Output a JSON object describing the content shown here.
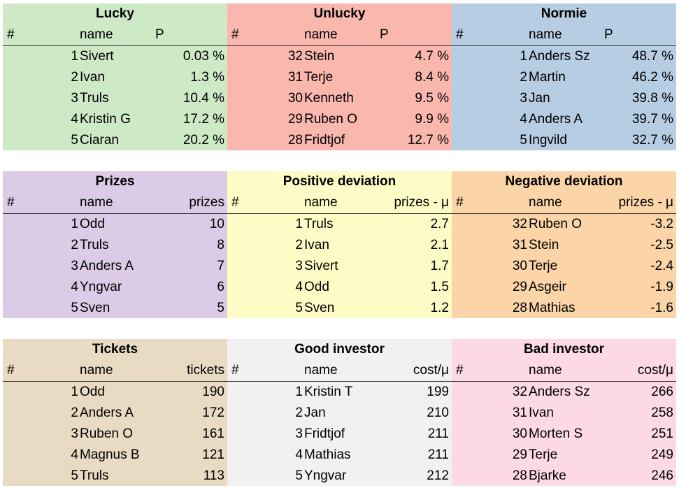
{
  "panels": [
    {
      "id": "lucky",
      "title": "Lucky",
      "color": "#cde9c6",
      "headers": {
        "hash": "#",
        "name": "name",
        "value": "P"
      },
      "value_align": "left-mid",
      "rows": [
        {
          "rank": "1",
          "name": "Sivert",
          "value": "0.03 %"
        },
        {
          "rank": "2",
          "name": "Ivan",
          "value": "1.3 %"
        },
        {
          "rank": "3",
          "name": "Truls",
          "value": "10.4 %"
        },
        {
          "rank": "4",
          "name": "Kristin G",
          "value": "17.2 %"
        },
        {
          "rank": "5",
          "name": "Ciaran",
          "value": "20.2 %"
        }
      ]
    },
    {
      "id": "unlucky",
      "title": "Unlucky",
      "color": "#f9b7ae",
      "headers": {
        "hash": "#",
        "name": "name",
        "value": "P"
      },
      "value_align": "left-mid",
      "rows": [
        {
          "rank": "32",
          "name": "Stein",
          "value": "4.7 %"
        },
        {
          "rank": "31",
          "name": "Terje",
          "value": "8.4 %"
        },
        {
          "rank": "30",
          "name": "Kenneth",
          "value": "9.5 %"
        },
        {
          "rank": "29",
          "name": "Ruben O",
          "value": "9.9 %"
        },
        {
          "rank": "28",
          "name": "Fridtjof",
          "value": "12.7 %"
        }
      ]
    },
    {
      "id": "normie",
      "title": "Normie",
      "color": "#b6cde4",
      "headers": {
        "hash": "#",
        "name": "name",
        "value": "P"
      },
      "value_align": "left-mid",
      "rows": [
        {
          "rank": "1",
          "name": "Anders Sz",
          "value": "48.7 %"
        },
        {
          "rank": "2",
          "name": "Martin",
          "value": "46.2 %"
        },
        {
          "rank": "3",
          "name": "Jan",
          "value": "39.8 %"
        },
        {
          "rank": "4",
          "name": "Anders A",
          "value": "39.7 %"
        },
        {
          "rank": "5",
          "name": "Ingvild",
          "value": "32.7 %"
        }
      ]
    },
    {
      "id": "prizes",
      "title": "Prizes",
      "color": "#dbcbe6",
      "headers": {
        "hash": "#",
        "name": "name",
        "value": "prizes"
      },
      "value_align": "right",
      "rows": [
        {
          "rank": "1",
          "name": "Odd",
          "value": "10"
        },
        {
          "rank": "2",
          "name": "Truls",
          "value": "8"
        },
        {
          "rank": "3",
          "name": "Anders A",
          "value": "7"
        },
        {
          "rank": "4",
          "name": "Yngvar",
          "value": "6"
        },
        {
          "rank": "5",
          "name": "Sven",
          "value": "5"
        }
      ]
    },
    {
      "id": "positive",
      "title": "Positive deviation",
      "color": "#fefcc6",
      "headers": {
        "hash": "#",
        "name": "name",
        "value": "prizes - μ"
      },
      "value_align": "right",
      "rows": [
        {
          "rank": "1",
          "name": "Truls",
          "value": "2.7"
        },
        {
          "rank": "2",
          "name": "Ivan",
          "value": "2.1"
        },
        {
          "rank": "3",
          "name": "Sivert",
          "value": "1.7"
        },
        {
          "rank": "4",
          "name": "Odd",
          "value": "1.5"
        },
        {
          "rank": "5",
          "name": "Sven",
          "value": "1.2"
        }
      ]
    },
    {
      "id": "negative",
      "title": "Negative deviation",
      "color": "#fbd5a8",
      "headers": {
        "hash": "#",
        "name": "name",
        "value": "prizes - μ"
      },
      "value_align": "right",
      "rows": [
        {
          "rank": "32",
          "name": "Ruben O",
          "value": "-3.2"
        },
        {
          "rank": "31",
          "name": "Stein",
          "value": "-2.5"
        },
        {
          "rank": "30",
          "name": "Terje",
          "value": "-2.4"
        },
        {
          "rank": "29",
          "name": "Asgeir",
          "value": "-1.9"
        },
        {
          "rank": "28",
          "name": "Mathias",
          "value": "-1.6"
        }
      ]
    },
    {
      "id": "tickets",
      "title": "Tickets",
      "color": "#e9dac3",
      "headers": {
        "hash": "#",
        "name": "name",
        "value": "tickets"
      },
      "value_align": "right",
      "rows": [
        {
          "rank": "1",
          "name": "Odd",
          "value": "190"
        },
        {
          "rank": "2",
          "name": "Anders A",
          "value": "172"
        },
        {
          "rank": "3",
          "name": "Ruben O",
          "value": "161"
        },
        {
          "rank": "4",
          "name": "Magnus B",
          "value": "121"
        },
        {
          "rank": "5",
          "name": "Truls",
          "value": "113"
        }
      ]
    },
    {
      "id": "good",
      "title": "Good investor",
      "color": "#f1f1f1",
      "headers": {
        "hash": "#",
        "name": "name",
        "value": "cost/μ"
      },
      "value_align": "right",
      "rows": [
        {
          "rank": "1",
          "name": "Kristin T",
          "value": "199"
        },
        {
          "rank": "2",
          "name": "Jan",
          "value": "210"
        },
        {
          "rank": "3",
          "name": "Fridtjof",
          "value": "211"
        },
        {
          "rank": "4",
          "name": "Mathias",
          "value": "211"
        },
        {
          "rank": "5",
          "name": "Yngvar",
          "value": "212"
        }
      ]
    },
    {
      "id": "bad",
      "title": "Bad investor",
      "color": "#fcd9e5",
      "headers": {
        "hash": "#",
        "name": "name",
        "value": "cost/μ"
      },
      "value_align": "right",
      "rows": [
        {
          "rank": "32",
          "name": "Anders Sz",
          "value": "266"
        },
        {
          "rank": "31",
          "name": "Ivan",
          "value": "258"
        },
        {
          "rank": "30",
          "name": "Morten S",
          "value": "251"
        },
        {
          "rank": "29",
          "name": "Terje",
          "value": "249"
        },
        {
          "rank": "28",
          "name": "Bjarke",
          "value": "246"
        }
      ]
    }
  ]
}
